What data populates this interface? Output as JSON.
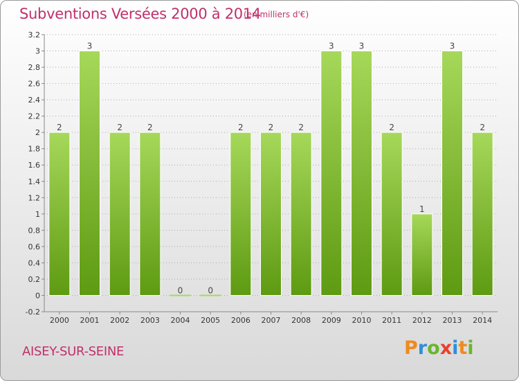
{
  "title": "Subventions Versées 2000 à 2014",
  "unit_note": "(en milliers d'€)",
  "place": "AISEY-SUR-SEINE",
  "logo": {
    "letters": [
      "P",
      "r",
      "o",
      "x",
      "i",
      "t",
      "i"
    ],
    "colors": [
      "#f08a1e",
      "#2e8fd8",
      "#6bb52e",
      "#e8412c",
      "#2e8fd8",
      "#f08a1e",
      "#6bb52e"
    ]
  },
  "colors": {
    "title": "#c0306a",
    "bar_light": "#a6d85a",
    "bar_dark": "#5e9a12",
    "axis": "#888888",
    "grid": "#aaaaaa"
  },
  "chart_data": {
    "type": "bar",
    "categories": [
      "2000",
      "2001",
      "2002",
      "2003",
      "2004",
      "2005",
      "2006",
      "2007",
      "2008",
      "2009",
      "2010",
      "2011",
      "2012",
      "2013",
      "2014"
    ],
    "values": [
      2,
      3,
      2,
      2,
      0,
      0,
      2,
      2,
      2,
      3,
      3,
      2,
      1,
      3,
      2
    ],
    "data_labels": [
      "2",
      "3",
      "2",
      "2",
      "0",
      "0",
      "2",
      "2",
      "2",
      "3",
      "3",
      "2",
      "1",
      "3",
      "2"
    ],
    "y_ticks": [
      "-0.2",
      "0",
      "0.2",
      "0.4",
      "0.6",
      "0.8",
      "1",
      "1.2",
      "1.4",
      "1.6",
      "1.8",
      "2",
      "2.2",
      "2.4",
      "2.6",
      "2.8",
      "3",
      "3.2"
    ],
    "ylim": [
      -0.2,
      3.2
    ],
    "grid": "horizontal dotted",
    "legend": "none"
  }
}
